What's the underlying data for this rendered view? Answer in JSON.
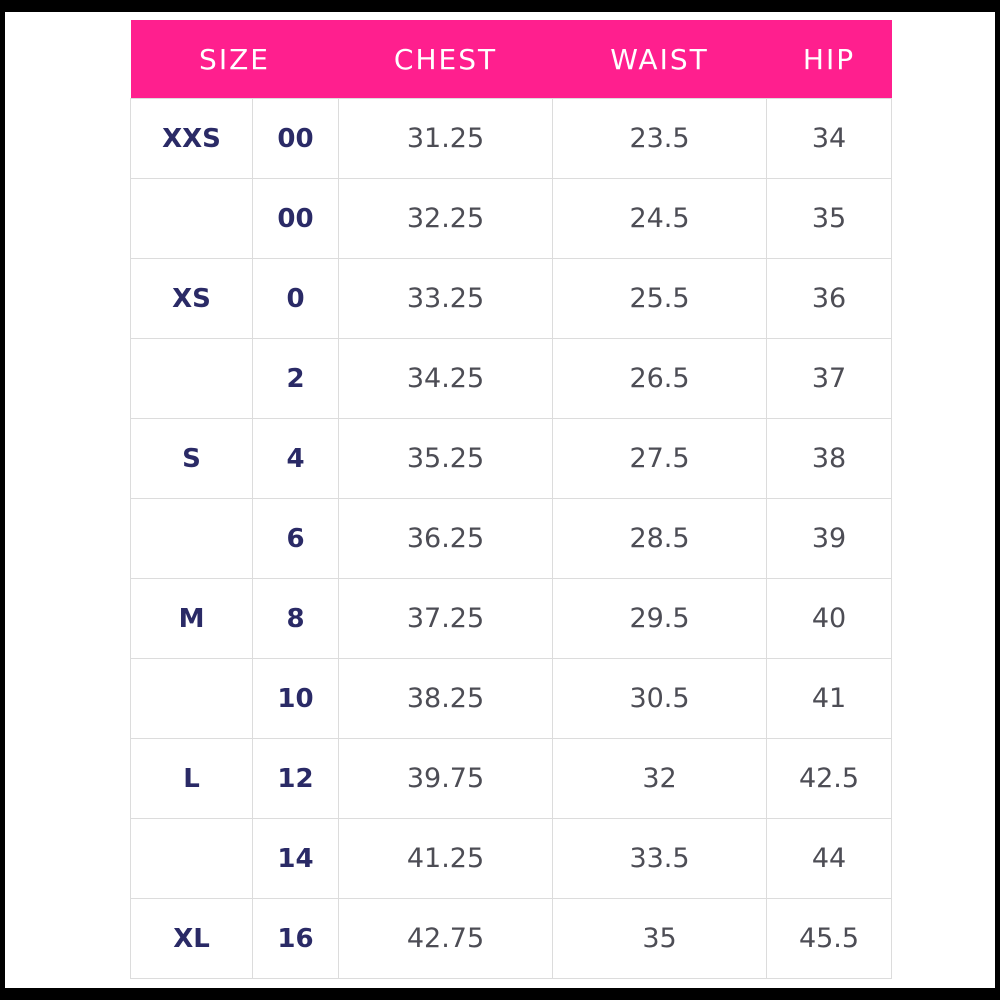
{
  "table": {
    "headers": {
      "size": "SIZE",
      "chest": "CHEST",
      "waist": "WAIST",
      "hip": "HIP"
    },
    "rows": [
      {
        "letter": "XXS",
        "number": "00",
        "chest": "31.25",
        "waist": "23.5",
        "hip": "34"
      },
      {
        "letter": null,
        "number": "00",
        "chest": "32.25",
        "waist": "24.5",
        "hip": "35"
      },
      {
        "letter": "XS",
        "number": "0",
        "chest": "33.25",
        "waist": "25.5",
        "hip": "36"
      },
      {
        "letter": null,
        "number": "2",
        "chest": "34.25",
        "waist": "26.5",
        "hip": "37"
      },
      {
        "letter": "S",
        "number": "4",
        "chest": "35.25",
        "waist": "27.5",
        "hip": "38"
      },
      {
        "letter": null,
        "number": "6",
        "chest": "36.25",
        "waist": "28.5",
        "hip": "39"
      },
      {
        "letter": "M",
        "number": "8",
        "chest": "37.25",
        "waist": "29.5",
        "hip": "40"
      },
      {
        "letter": null,
        "number": "10",
        "chest": "38.25",
        "waist": "30.5",
        "hip": "41"
      },
      {
        "letter": "L",
        "number": "12",
        "chest": "39.75",
        "waist": "32",
        "hip": "42.5"
      },
      {
        "letter": null,
        "number": "14",
        "chest": "41.25",
        "waist": "33.5",
        "hip": "44"
      },
      {
        "letter": "XL",
        "number": "16",
        "chest": "42.75",
        "waist": "35",
        "hip": "45.5"
      }
    ]
  }
}
